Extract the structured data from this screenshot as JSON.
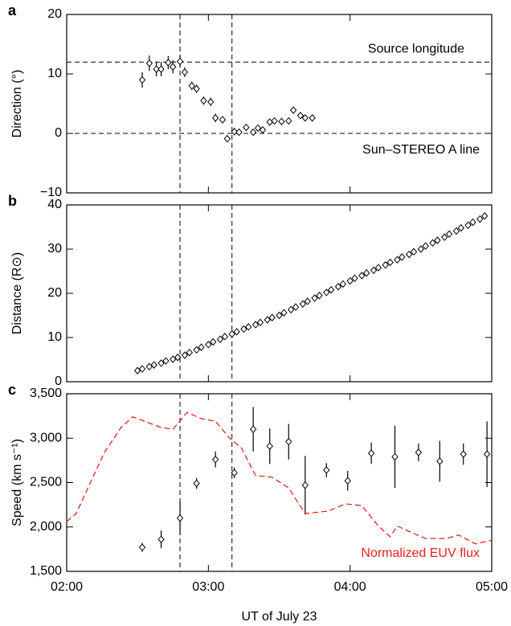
{
  "chart_data": [
    {
      "type": "scatter",
      "panel": "a",
      "ylabel": "Direction (°)",
      "xlim": [
        "02:00",
        "05:00"
      ],
      "xticks": [
        "02:00",
        "03:00",
        "04:00",
        "05:00"
      ],
      "xtick_labels": false,
      "ylim": [
        -10,
        20
      ],
      "yticks": [
        {
          "value": -10,
          "label": "−10"
        },
        0,
        10,
        20
      ],
      "vlines": [
        "02:48",
        "03:10"
      ],
      "hlines": [
        {
          "value": 12,
          "label": "Source longitude"
        },
        {
          "value": 0,
          "label": "Sun–STEREO A line"
        }
      ],
      "series": [
        {
          "color": "#000000",
          "x": [
            "02:32",
            "02:35",
            "02:38",
            "02:40",
            "02:43",
            "02:45",
            "02:48",
            "02:50",
            "02:53",
            "02:55",
            "02:58",
            "03:01",
            "03:03",
            "03:06",
            "03:08",
            "03:11",
            "03:13",
            "03:16",
            "03:19",
            "03:21",
            "03:23",
            "03:26",
            "03:28",
            "03:31",
            "03:34",
            "03:36",
            "03:39",
            "03:41",
            "03:44"
          ],
          "values": [
            9.0,
            11.8,
            10.8,
            10.8,
            11.9,
            11.2,
            12.1,
            10.3,
            8.0,
            7.5,
            5.5,
            5.3,
            2.6,
            2.3,
            -0.9,
            0.3,
            0.2,
            1.0,
            0.2,
            0.9,
            0.6,
            1.9,
            2.1,
            2.0,
            2.1,
            3.9,
            3.0,
            2.6,
            2.6
          ],
          "errors": [
            1.3,
            1.3,
            1.2,
            1.2,
            1.1,
            1.1,
            1.0,
            0.8,
            0.7,
            0.7,
            0.7,
            0.7,
            0.7,
            0.6,
            0.6,
            0.6,
            0.5,
            0.5,
            0.5,
            0.5,
            0.5,
            0.5,
            0.4,
            0.4,
            0.4,
            0.4,
            0.4,
            0.4,
            0.4
          ]
        }
      ]
    },
    {
      "type": "scatter",
      "panel": "b",
      "ylabel": "Distance (R⊙)",
      "xlim": [
        "02:00",
        "05:00"
      ],
      "xticks": [
        "02:00",
        "03:00",
        "04:00",
        "05:00"
      ],
      "xtick_labels": false,
      "ylim": [
        0,
        40
      ],
      "yticks": [
        0,
        10,
        20,
        30,
        40
      ],
      "vlines": [
        "02:48",
        "03:10"
      ],
      "series": [
        {
          "color": "#000000",
          "x": [
            "02:30",
            "02:32",
            "02:35",
            "02:37",
            "02:40",
            "02:42",
            "02:45",
            "02:47",
            "02:50",
            "02:52",
            "02:55",
            "02:57",
            "03:00",
            "03:02",
            "03:05",
            "03:07",
            "03:10",
            "03:12",
            "03:15",
            "03:17",
            "03:20",
            "03:22",
            "03:25",
            "03:27",
            "03:30",
            "03:32",
            "03:35",
            "03:37",
            "03:40",
            "03:42",
            "03:45",
            "03:47",
            "03:50",
            "03:52",
            "03:55",
            "03:57",
            "04:00",
            "04:02",
            "04:05",
            "04:07",
            "04:10",
            "04:12",
            "04:15",
            "04:17",
            "04:20",
            "04:22",
            "04:25",
            "04:27",
            "04:30",
            "04:32",
            "04:35",
            "04:37",
            "04:40",
            "04:42",
            "04:45",
            "04:47",
            "04:50",
            "04:52",
            "04:55",
            "04:57"
          ],
          "values": [
            2.5,
            2.9,
            3.4,
            3.8,
            4.2,
            4.7,
            5.1,
            5.5,
            6.0,
            6.6,
            7.2,
            7.8,
            8.4,
            9.0,
            9.6,
            10.2,
            10.8,
            11.3,
            11.9,
            12.4,
            12.9,
            13.4,
            14.0,
            14.5,
            15.0,
            15.6,
            16.3,
            16.9,
            17.6,
            18.2,
            18.9,
            19.5,
            20.2,
            20.8,
            21.5,
            22.1,
            22.8,
            23.4,
            24.0,
            24.6,
            25.2,
            25.8,
            26.4,
            27.0,
            27.6,
            28.2,
            28.8,
            29.4,
            30.0,
            30.7,
            31.4,
            32.0,
            32.7,
            33.4,
            34.1,
            34.8,
            35.4,
            36.1,
            36.8,
            37.5
          ]
        }
      ]
    },
    {
      "type": "scatter",
      "panel": "c",
      "ylabel": "Speed (km s⁻¹)",
      "xlabel": "UT of July 23",
      "xlim": [
        "02:00",
        "05:00"
      ],
      "xticks": [
        "02:00",
        "03:00",
        "04:00",
        "05:00"
      ],
      "xtick_labels": true,
      "ylim": [
        1500,
        3500
      ],
      "yticks": [
        {
          "value": 1500,
          "label": "1,500"
        },
        {
          "value": 2000,
          "label": "2,000"
        },
        {
          "value": 2500,
          "label": "2,500"
        },
        {
          "value": 3000,
          "label": "3,000"
        },
        {
          "value": 3500,
          "label": "3,500"
        }
      ],
      "vlines": [
        "02:48",
        "03:10"
      ],
      "series": [
        {
          "color": "#000000",
          "x": [
            "02:32",
            "02:40",
            "02:48",
            "02:55",
            "03:03",
            "03:11",
            "03:19",
            "03:26",
            "03:34",
            "03:41",
            "03:50",
            "03:59",
            "04:09",
            "04:19",
            "04:29",
            "04:38",
            "04:48",
            "04:58"
          ],
          "values": [
            1770,
            1860,
            2100,
            2490,
            2760,
            2610,
            3100,
            2910,
            2960,
            2470,
            2640,
            2520,
            2830,
            2790,
            2840,
            2740,
            2820,
            2820
          ],
          "errors": [
            50,
            100,
            180,
            60,
            90,
            60,
            250,
            200,
            200,
            330,
            80,
            110,
            120,
            350,
            100,
            230,
            120,
            370
          ]
        },
        {
          "type": "line",
          "name": "Normalized EUV flux",
          "color": "#e8221b",
          "x": [
            "02:00",
            "02:04",
            "02:09",
            "02:16",
            "02:23",
            "02:28",
            "02:33",
            "02:40",
            "02:45",
            "02:51",
            "02:57",
            "03:03",
            "03:09",
            "03:14",
            "03:20",
            "03:27",
            "03:34",
            "03:41",
            "03:51",
            "03:58",
            "04:05",
            "04:12",
            "04:17",
            "04:20",
            "04:25",
            "04:32",
            "04:41",
            "04:46",
            "04:53",
            "05:00"
          ],
          "values": [
            2060,
            2150,
            2440,
            2840,
            3120,
            3240,
            3190,
            3120,
            3100,
            3290,
            3220,
            3190,
            3000,
            2890,
            2580,
            2560,
            2440,
            2150,
            2180,
            2260,
            2240,
            2010,
            1890,
            2010,
            1950,
            1870,
            1870,
            1910,
            1810,
            1850
          ]
        }
      ]
    }
  ]
}
